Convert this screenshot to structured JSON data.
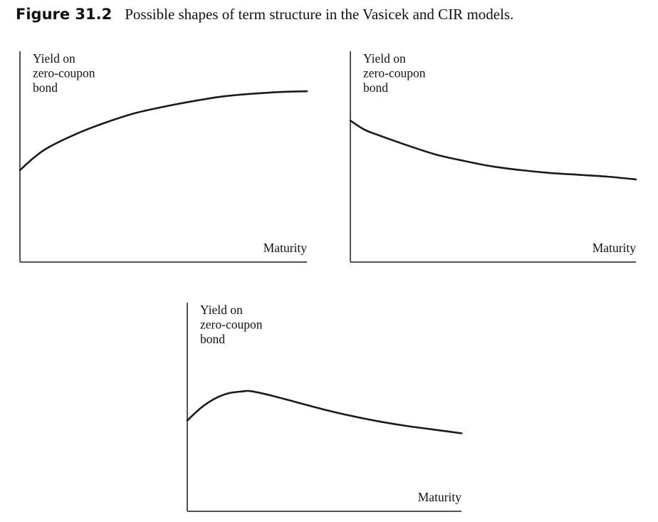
{
  "figure": {
    "label": "Figure 31.2",
    "title": "Possible shapes of term structure in the Vasicek and CIR models."
  },
  "colors": {
    "curve": "#1a1a1a",
    "axis": "#1a1a1a",
    "text": "#111111"
  },
  "chart_data": [
    {
      "type": "line",
      "title": "",
      "ylabel": [
        "Yield on",
        "zero-coupon",
        "bond"
      ],
      "xlabel": "Maturity",
      "xlim": [
        0,
        1
      ],
      "ylim": [
        0,
        1
      ],
      "grid": false,
      "series": [
        {
          "x": [
            0,
            0.05,
            0.1,
            0.2,
            0.3,
            0.4,
            0.5,
            0.6,
            0.7,
            0.8,
            0.9,
            1.0
          ],
          "y": [
            0.5,
            0.57,
            0.625,
            0.7,
            0.76,
            0.81,
            0.845,
            0.875,
            0.9,
            0.915,
            0.925,
            0.93
          ]
        }
      ]
    },
    {
      "type": "line",
      "title": "",
      "ylabel": [
        "Yield on",
        "zero-coupon",
        "bond"
      ],
      "xlabel": "Maturity",
      "xlim": [
        0,
        1
      ],
      "ylim": [
        0,
        1
      ],
      "grid": false,
      "series": [
        {
          "x": [
            0,
            0.05,
            0.1,
            0.2,
            0.3,
            0.4,
            0.5,
            0.6,
            0.7,
            0.8,
            0.9,
            1.0
          ],
          "y": [
            0.77,
            0.72,
            0.69,
            0.635,
            0.585,
            0.55,
            0.52,
            0.5,
            0.485,
            0.475,
            0.465,
            0.45
          ]
        }
      ]
    },
    {
      "type": "line",
      "title": "",
      "ylabel": [
        "Yield on",
        "zero-coupon",
        "bond"
      ],
      "xlabel": "Maturity",
      "xlim": [
        0,
        1
      ],
      "ylim": [
        0,
        1
      ],
      "grid": false,
      "series": [
        {
          "x": [
            0,
            0.05,
            0.1,
            0.15,
            0.2,
            0.23,
            0.3,
            0.4,
            0.5,
            0.6,
            0.7,
            0.8,
            0.9,
            1.0
          ],
          "y": [
            0.5,
            0.57,
            0.62,
            0.65,
            0.66,
            0.662,
            0.64,
            0.6,
            0.56,
            0.525,
            0.495,
            0.47,
            0.45,
            0.43
          ]
        }
      ]
    }
  ]
}
